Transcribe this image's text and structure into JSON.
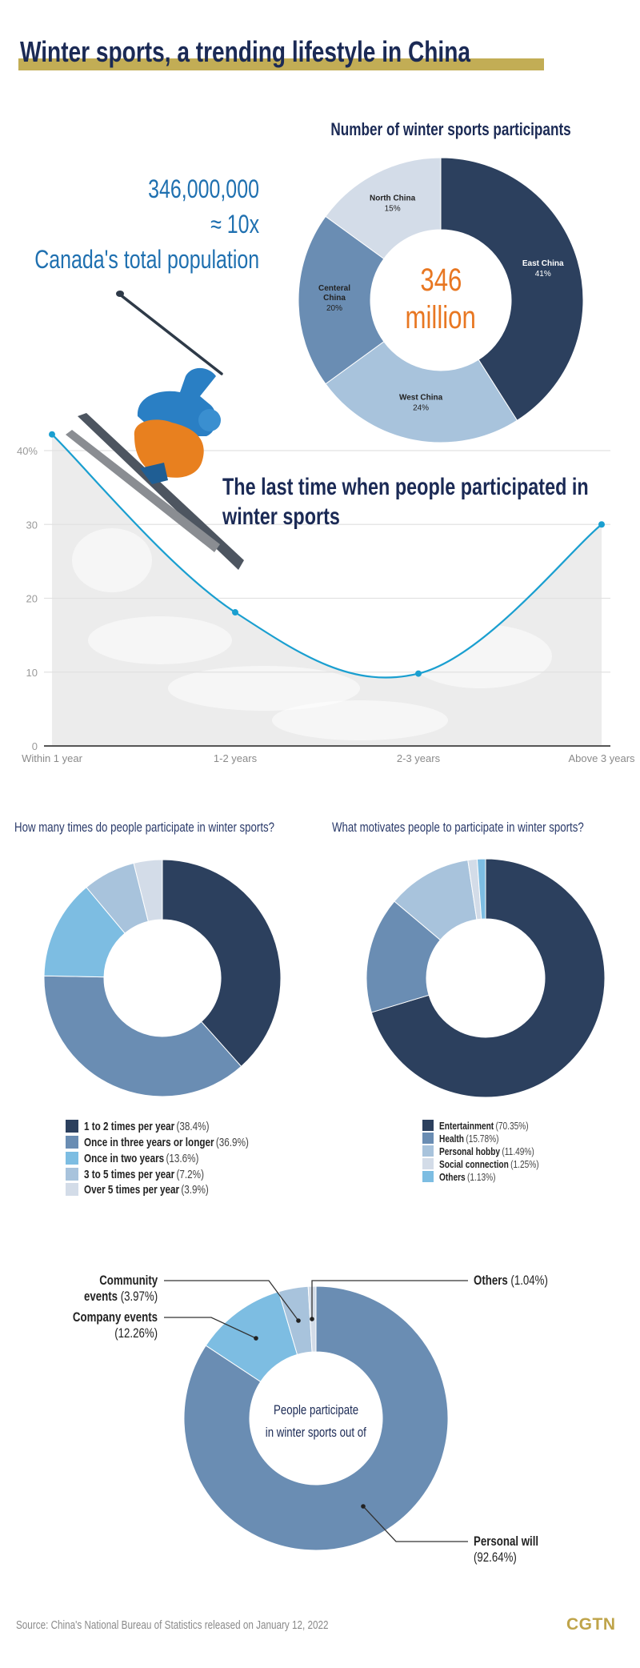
{
  "title": "Winter sports, a trending lifestyle in China",
  "hero": {
    "number": "346,000,000",
    "approx": "≈ 10x",
    "comparison": "Canada's total population"
  },
  "colors": {
    "navy": "#2c405e",
    "steel": "#6a8db3",
    "sky": "#7dbde2",
    "light_steel": "#a8c3dc",
    "pale": "#d3dce8",
    "accent_orange": "#e87722",
    "line_blue": "#1a9fd0",
    "gold": "#c2ad55"
  },
  "chart_data": [
    {
      "type": "pie",
      "style": "donut",
      "title": "Number of winter sports participants",
      "center_label": [
        "346",
        "million"
      ],
      "categories": [
        "East China",
        "West China",
        "Centeral China",
        "North China"
      ],
      "values": [
        41,
        24,
        20,
        15
      ],
      "value_labels": [
        "41%",
        "24%",
        "20%",
        "15%"
      ],
      "colors": [
        "#2c405e",
        "#a8c3dc",
        "#6a8db3",
        "#d3dce8"
      ]
    },
    {
      "type": "line",
      "title": "The last time when people participated in winter sports",
      "categories": [
        "Within 1 year",
        "1-2 years",
        "2-3 years",
        "Above 3 years"
      ],
      "values": [
        42.2,
        18.1,
        9.8,
        30
      ],
      "ylim": [
        0,
        40
      ],
      "yticks": [
        0,
        10,
        20,
        30,
        40
      ],
      "ytick_labels": [
        "0",
        "10",
        "20",
        "30",
        "40%"
      ],
      "grid": true,
      "color": "#1a9fd0"
    },
    {
      "type": "pie",
      "style": "donut",
      "title": "How many times do people participate in winter sports?",
      "categories": [
        "1 to 2 times per year",
        "Once in three years or longer",
        "Once in two years",
        "3 to 5 times per year",
        "Over 5 times per year"
      ],
      "values": [
        38.4,
        36.9,
        13.6,
        7.2,
        3.9
      ],
      "value_labels": [
        "(38.4%)",
        "(36.9%)",
        "(13.6%)",
        "(7.2%)",
        "(3.9%)"
      ],
      "colors": [
        "#2c405e",
        "#6a8db3",
        "#7dbde2",
        "#a8c3dc",
        "#d3dce8"
      ],
      "legend": "bottom"
    },
    {
      "type": "pie",
      "style": "donut",
      "title": "What motivates people to participate in winter sports?",
      "categories": [
        "Entertainment",
        "Health",
        "Personal hobby",
        "Social connection",
        "Others"
      ],
      "values": [
        70.35,
        15.78,
        11.49,
        1.25,
        1.13
      ],
      "value_labels": [
        "(70.35%)",
        "(15.78%)",
        "(11.49%)",
        "(1.25%)",
        "(1.13%)"
      ],
      "colors": [
        "#2c405e",
        "#6a8db3",
        "#a8c3dc",
        "#d3dce8",
        "#7dbde2"
      ],
      "legend": "bottom"
    },
    {
      "type": "pie",
      "style": "donut",
      "center_label": [
        "People participate",
        "in winter sports out of"
      ],
      "categories": [
        "Personal will",
        "Company events",
        "Community events",
        "Others"
      ],
      "values": [
        92.64,
        12.26,
        3.97,
        1.04
      ],
      "value_labels": [
        "(92.64%)",
        "(12.26%)",
        "(3.97%)",
        "(1.04%)"
      ],
      "colors": [
        "#6a8db3",
        "#7dbde2",
        "#a8c3dc",
        "#d3dce8"
      ],
      "label_lines": [
        [
          "Personal will"
        ],
        [
          "Company events"
        ],
        [
          "Community",
          "events"
        ],
        [
          "Others"
        ]
      ]
    }
  ],
  "source": "Source: China's National Bureau of Statistics released on January 12, 2022",
  "logo": "CGTN"
}
